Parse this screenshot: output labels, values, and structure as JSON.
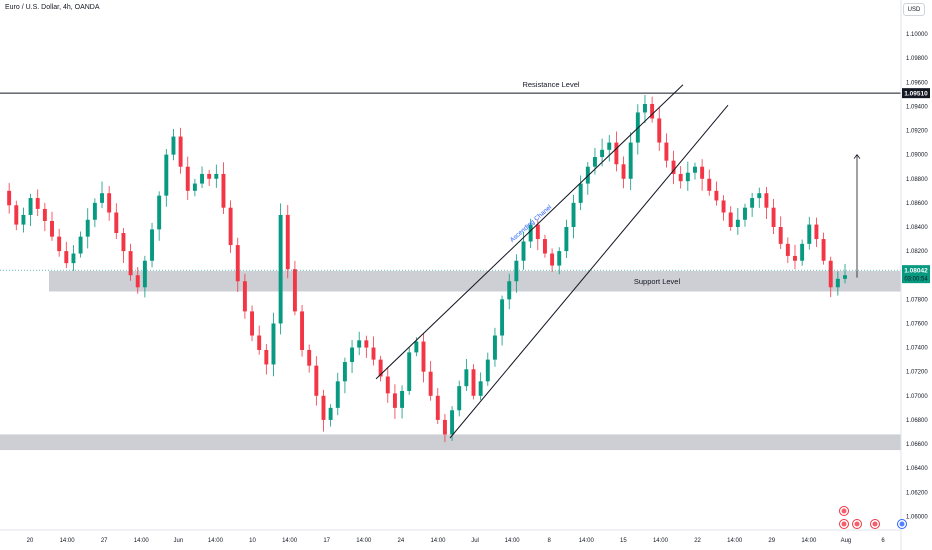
{
  "title": "Euro / U.S. Dollar, 4h, OANDA",
  "currency": "USD",
  "colors": {
    "up": "#089981",
    "down": "#f23645",
    "zone": "#b2b5be",
    "line": "#131722",
    "channel_label": "#2962ff",
    "axis_text": "#131722"
  },
  "chart_data": {
    "type": "candlestick",
    "symbol": "EURUSD",
    "timeframe": "4h",
    "y_ticks": [
      "1.10000",
      "1.09800",
      "1.09600",
      "1.09400",
      "1.09200",
      "1.09000",
      "1.08800",
      "1.08600",
      "1.08400",
      "1.08200",
      "1.07800",
      "1.07600",
      "1.07400",
      "1.07200",
      "1.07000",
      "1.06800",
      "1.06600",
      "1.06400",
      "1.06200",
      "1.06000"
    ],
    "x_ticks": [
      "20",
      "14:00",
      "27",
      "14:00",
      "Jun",
      "14:00",
      "10",
      "14:00",
      "17",
      "14:00",
      "24",
      "14:00",
      "Jul",
      "14:00",
      "8",
      "14:00",
      "15",
      "14:00",
      "22",
      "14:00",
      "29",
      "14:00",
      "Aug",
      "6"
    ],
    "ylim": [
      1.0597,
      1.101
    ],
    "resistance_price": "1.09510",
    "resistance_value": 1.0951,
    "last_price": "1.08042",
    "countdown": "03:00:54",
    "last_value": 1.08042,
    "resistance_label": "Resistance Level",
    "support_label": "Support Level",
    "channel_label": "Ascending Chanel",
    "support_zone": [
      1.079,
      1.08
    ],
    "demand_zone": [
      1.0655,
      1.0668
    ],
    "channel_upper": [
      [
        1.0714,
        1.0958
      ]
    ],
    "channel_lower": [
      [
        1.0665,
        1.0941
      ]
    ],
    "target_arrow": [
      1.0798,
      1.09
    ],
    "price_path": [
      1.087,
      1.0858,
      1.0842,
      1.085,
      1.0864,
      1.0855,
      1.0845,
      1.0832,
      1.082,
      1.081,
      1.0818,
      1.0832,
      1.0846,
      1.086,
      1.0868,
      1.0852,
      1.0835,
      1.082,
      1.08,
      1.079,
      1.0812,
      1.0838,
      1.0866,
      1.09,
      1.0915,
      1.089,
      1.087,
      1.0876,
      1.0884,
      1.088,
      1.0884,
      1.0856,
      1.0825,
      1.0795,
      1.077,
      1.075,
      1.0738,
      1.0726,
      1.076,
      1.085,
      1.0805,
      1.077,
      1.0738,
      1.0725,
      1.07,
      1.068,
      1.069,
      1.0712,
      1.0728,
      1.074,
      1.0746,
      1.074,
      1.073,
      1.0716,
      1.0702,
      1.069,
      1.0704,
      1.0736,
      1.0745,
      1.072,
      1.07,
      1.068,
      1.0668,
      1.0688,
      1.0708,
      1.0722,
      1.07,
      1.0712,
      1.073,
      1.075,
      1.078,
      1.0795,
      1.0812,
      1.0828,
      1.0842,
      1.083,
      1.0818,
      1.0808,
      1.082,
      1.084,
      1.086,
      1.0876,
      1.089,
      1.0898,
      1.0904,
      1.091,
      1.0892,
      1.088,
      1.091,
      1.0935,
      1.0942,
      1.093,
      1.091,
      1.0895,
      1.0884,
      1.0878,
      1.0885,
      1.089,
      1.088,
      1.087,
      1.0862,
      1.0852,
      1.084,
      1.0846,
      1.0856,
      1.0864,
      1.0868,
      1.0856,
      1.084,
      1.0826,
      1.0816,
      1.0812,
      1.0826,
      1.0842,
      1.083,
      1.0812,
      1.079,
      1.0797,
      1.08
    ]
  }
}
